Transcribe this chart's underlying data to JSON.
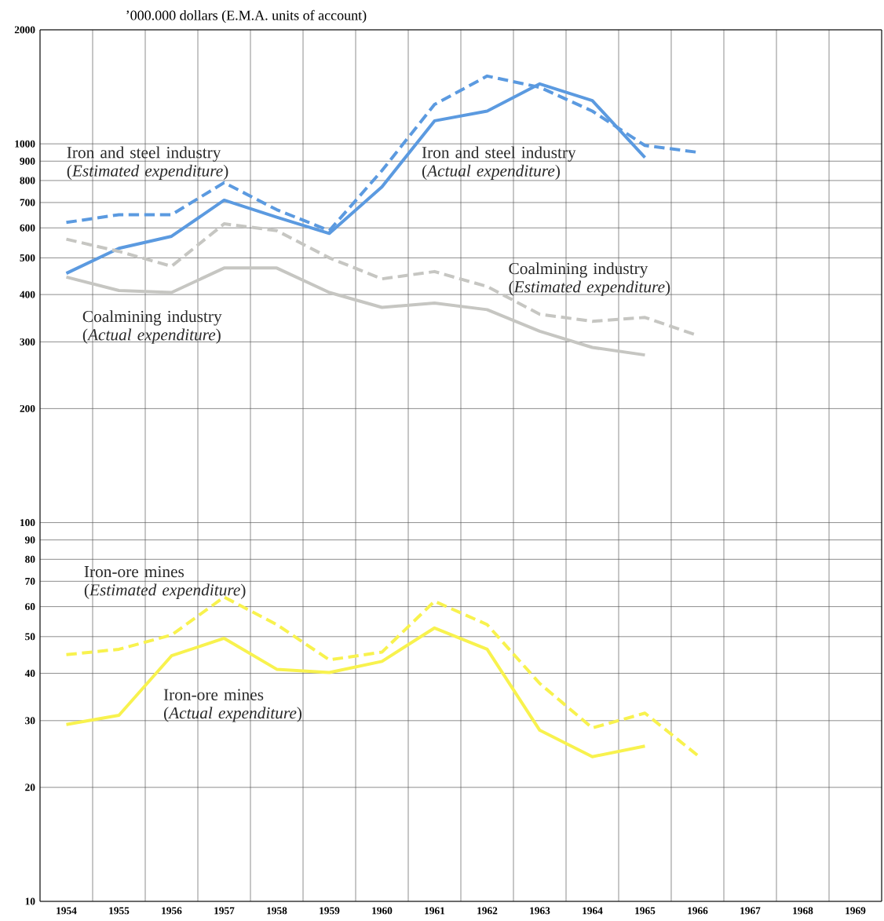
{
  "chart_data": {
    "type": "line",
    "ylabel": "’000.000 dollars (E.M.A. units of account)",
    "categories": [
      "1954",
      "1955",
      "1956",
      "1957",
      "1958",
      "1959",
      "1960",
      "1961",
      "1962",
      "1963",
      "1964",
      "1965",
      "1966",
      "1967",
      "1968",
      "1969"
    ],
    "log": true,
    "grid": true,
    "ylim": [
      10,
      2000
    ],
    "yticks": [
      10,
      20,
      30,
      40,
      50,
      60,
      70,
      80,
      90,
      100,
      200,
      300,
      400,
      500,
      600,
      700,
      800,
      900,
      1000,
      2000
    ],
    "series": [
      {
        "name": "Iron and steel industry (*Actual expenditure*)",
        "color": "#5b9ae0",
        "line_style": "solid",
        "values": [
          455,
          530,
          570,
          710,
          640,
          580,
          770,
          1150,
          1220,
          1440,
          1300,
          920,
          null,
          null,
          null,
          null
        ]
      },
      {
        "name": "Iron and steel industry (*Estimated expenditure*)",
        "color": "#5b9ae0",
        "line_style": "dashed",
        "values": [
          620,
          650,
          650,
          790,
          670,
          590,
          850,
          1270,
          1510,
          1410,
          1220,
          990,
          950,
          null,
          null,
          null
        ]
      },
      {
        "name": "Coalmining industry (*Actual expenditure*)",
        "color": "#c6c6c2",
        "line_style": "solid",
        "values": [
          445,
          410,
          405,
          470,
          470,
          405,
          370,
          380,
          365,
          320,
          290,
          277,
          null,
          null,
          null,
          null
        ]
      },
      {
        "name": "Coalmining industry (*Estimated expenditure*)",
        "color": "#c6c6c2",
        "line_style": "dashed",
        "values": [
          560,
          520,
          475,
          615,
          590,
          500,
          440,
          460,
          420,
          355,
          340,
          348,
          312,
          null,
          null,
          null
        ]
      },
      {
        "name": "Iron-ore mines (*Actual expenditure*)",
        "color": "#f8f24e",
        "line_style": "solid",
        "values": [
          29.3,
          31,
          44.5,
          49.5,
          41,
          40.2,
          43,
          52.7,
          46.3,
          28.3,
          24.1,
          25.7,
          null,
          null,
          null,
          null
        ]
      },
      {
        "name": "Iron-ore mines (*Estimated expenditure*)",
        "color": "#f8f24e",
        "line_style": "dashed",
        "values": [
          44.8,
          46.3,
          50.5,
          63.6,
          53.8,
          43.4,
          45.5,
          62,
          53.8,
          37.6,
          28.7,
          31.4,
          24.3,
          null,
          null,
          null
        ]
      }
    ]
  }
}
